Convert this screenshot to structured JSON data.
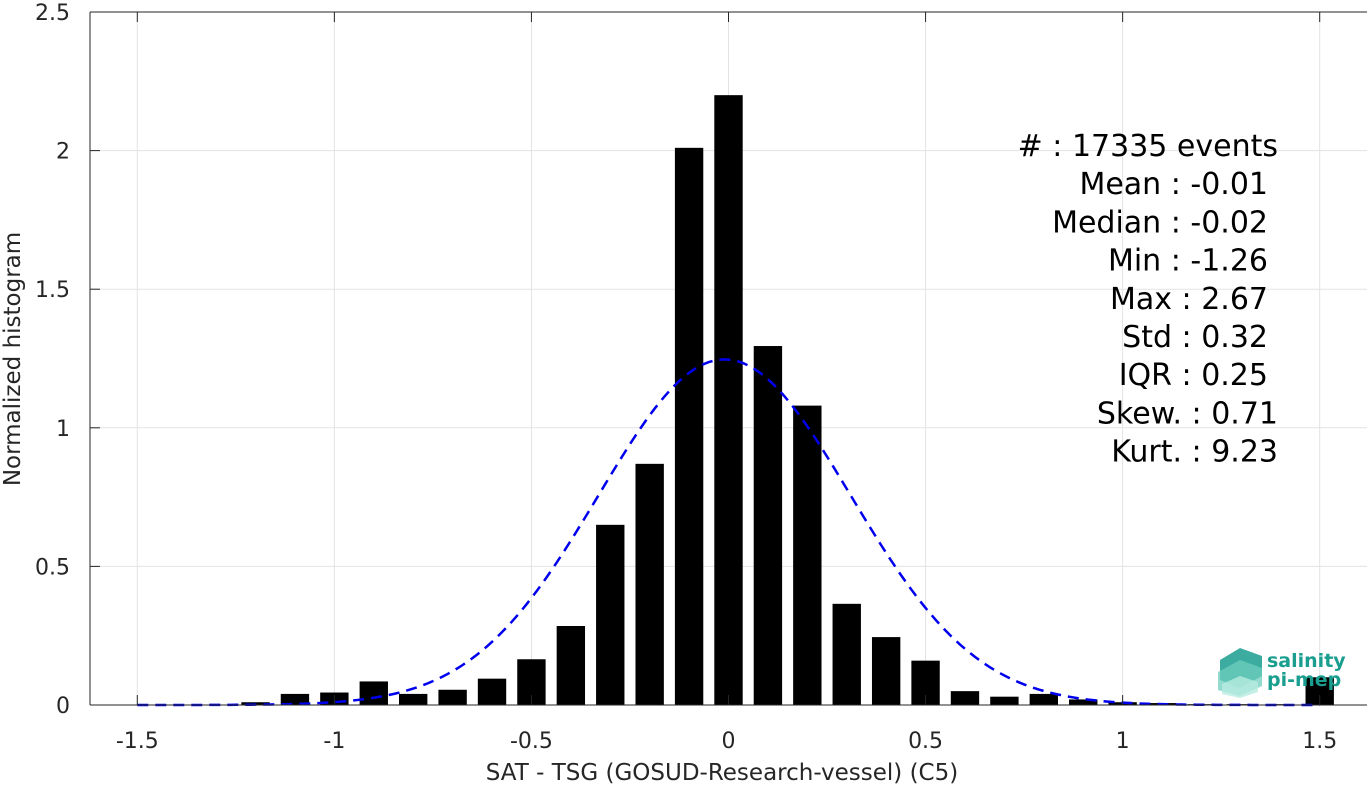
{
  "chart_data": {
    "type": "bar",
    "xlabel": "SAT - TSG (GOSUD-Research-vessel) (C5)",
    "ylabel": "Normalized histogram",
    "xlim": [
      -1.62,
      1.62
    ],
    "ylim": [
      0,
      2.5
    ],
    "xticks": [
      -1.5,
      -1,
      -0.5,
      0,
      0.5,
      1,
      1.5
    ],
    "xtick_labels": [
      "-1.5",
      "-1",
      "-0.5",
      "0",
      "0.5",
      "1",
      "1.5"
    ],
    "yticks": [
      0,
      0.5,
      1,
      1.5,
      2,
      2.5
    ],
    "ytick_labels": [
      "0",
      "0.5",
      "1",
      "1.5",
      "2",
      "2.5"
    ],
    "grid": true,
    "bar_color": "#000000",
    "bins": [
      -1.5,
      -1.4,
      -1.3,
      -1.2,
      -1.1,
      -1.0,
      -0.9,
      -0.8,
      -0.7,
      -0.6,
      -0.5,
      -0.4,
      -0.3,
      -0.2,
      -0.1,
      0.0,
      0.1,
      0.2,
      0.3,
      0.4,
      0.5,
      0.6,
      0.7,
      0.8,
      0.9,
      1.0,
      1.1,
      1.2,
      1.3,
      1.4,
      1.5
    ],
    "values": [
      0.0,
      0.0,
      0.0,
      0.01,
      0.04,
      0.045,
      0.085,
      0.04,
      0.055,
      0.095,
      0.165,
      0.285,
      0.65,
      0.87,
      2.01,
      2.2,
      1.295,
      1.08,
      0.365,
      0.245,
      0.16,
      0.05,
      0.03,
      0.04,
      0.02,
      0.01,
      0.007,
      0.003,
      0.003,
      0.003,
      0.1
    ],
    "fit": {
      "name": "Gaussian fit",
      "style": "dashed",
      "color": "#0000ee",
      "mean": -0.01,
      "std": 0.32,
      "x_range": [
        -1.5,
        1.5
      ]
    },
    "stats": [
      {
        "label": "#  : 17335 events"
      },
      {
        "label": "Mean : -0.01"
      },
      {
        "label": "Median : -0.02"
      },
      {
        "label": "Min : -1.26"
      },
      {
        "label": "Max : 2.67"
      },
      {
        "label": "Std : 0.32"
      },
      {
        "label": "IQR : 0.25"
      },
      {
        "label": "Skew. : 0.71"
      },
      {
        "label": "Kurt. : 9.23"
      }
    ]
  },
  "logo": {
    "line1": "salinity",
    "line2": "pi-mep",
    "color": "#1a9e8f"
  }
}
